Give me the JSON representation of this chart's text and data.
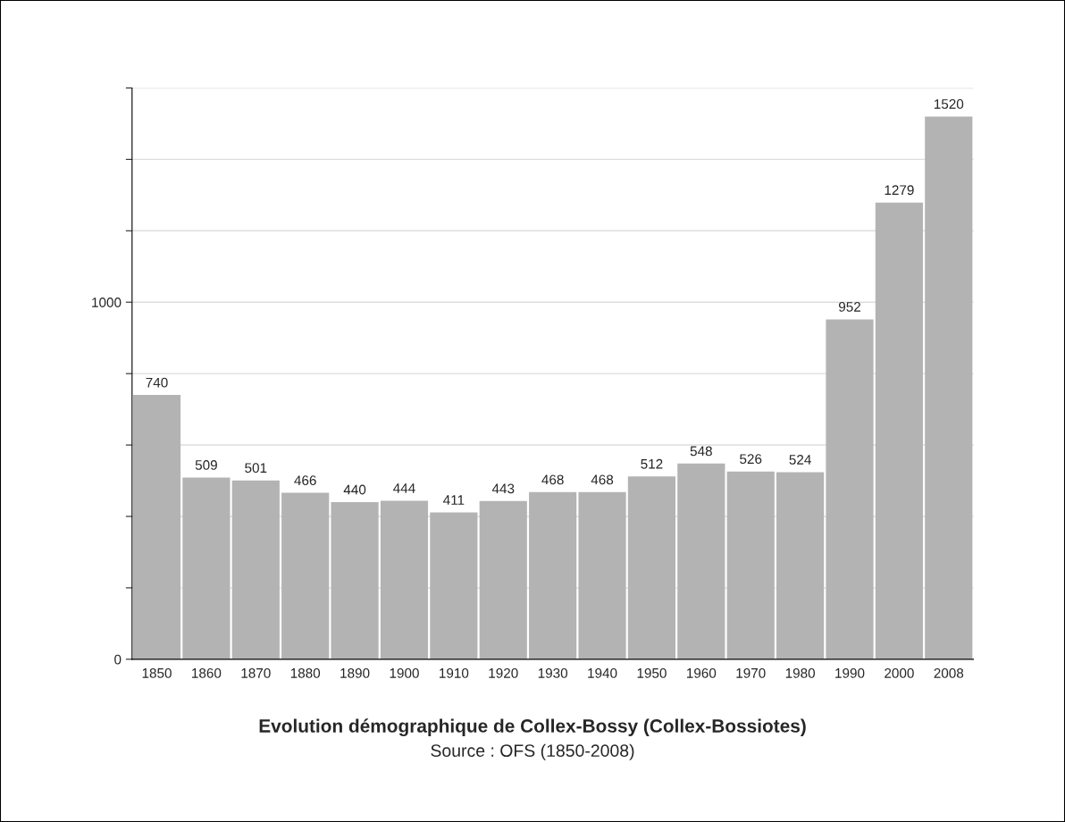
{
  "chart_data": {
    "type": "bar",
    "title": "Evolution démographique de Collex-Bossy (Collex-Bossiotes)",
    "categories": [
      "1850",
      "1860",
      "1870",
      "1880",
      "1890",
      "1900",
      "1910",
      "1920",
      "1930",
      "1940",
      "1950",
      "1960",
      "1970",
      "1980",
      "1990",
      "2000",
      "2008"
    ],
    "values": [
      740,
      509,
      501,
      466,
      440,
      444,
      411,
      443,
      468,
      468,
      512,
      548,
      526,
      524,
      952,
      1279,
      1520
    ],
    "color": "#b3b3b3",
    "ylim": [
      0,
      1600
    ],
    "yticks": [
      0,
      {
        "value": 200,
        "label": null
      },
      {
        "value": 400,
        "label": null
      },
      {
        "value": 600,
        "label": null
      },
      {
        "value": 800,
        "label": null
      },
      1000,
      {
        "value": 1200,
        "label": null
      },
      {
        "value": 1400,
        "label": null
      },
      {
        "value": 1600,
        "label": null
      }
    ],
    "grid": "y",
    "data_labels": true,
    "annotations": [
      "Source : OFS (1850-2008)"
    ]
  }
}
